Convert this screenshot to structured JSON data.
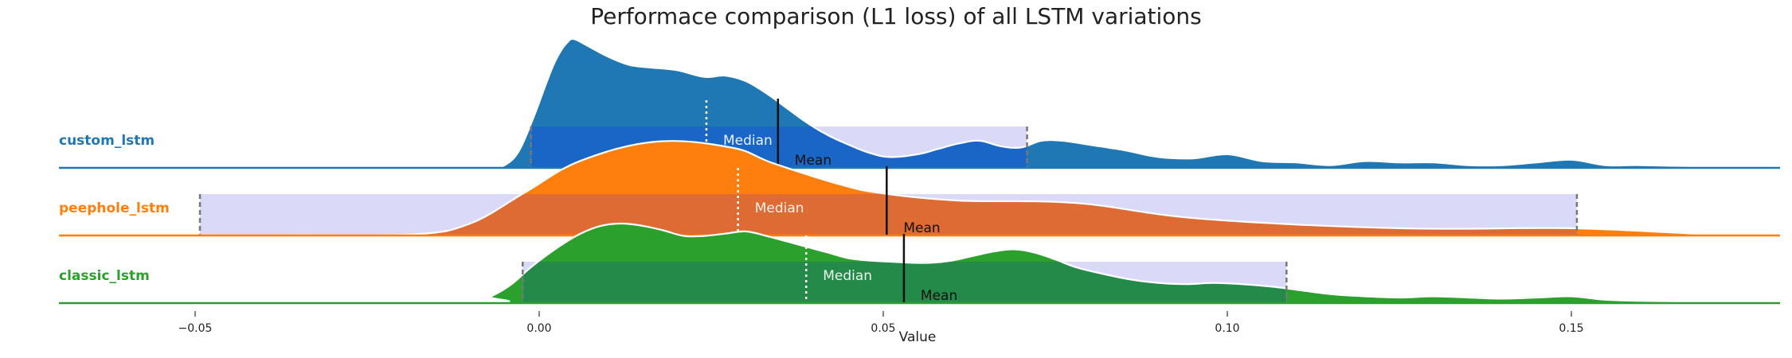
{
  "chart_data": {
    "type": "ridgeline",
    "title": "Performace comparison (L1 loss) of all LSTM variations",
    "xlabel": "Value",
    "xlim": [
      -0.07,
      0.18
    ],
    "xticks": [
      -0.05,
      0.0,
      0.05,
      0.1,
      0.15
    ],
    "xtick_labels": [
      "−0.05",
      "0.00",
      "0.05",
      "0.10",
      "0.15"
    ],
    "grid": false,
    "legend": "none",
    "median_label": "Median",
    "mean_label": "Mean",
    "series": [
      {
        "name": "custom_lstm",
        "color": "#1f77b4",
        "interval_fill": "#1a66c7",
        "mean": 0.0347,
        "median": 0.0243,
        "interval": [
          -0.0012,
          0.0709
        ],
        "density_x": [
          -0.007,
          -0.005,
          -0.003,
          -0.001,
          0.001,
          0.002,
          0.003,
          0.004,
          0.005,
          0.007,
          0.01,
          0.013,
          0.016,
          0.02,
          0.024,
          0.027,
          0.03,
          0.033,
          0.036,
          0.039,
          0.042,
          0.045,
          0.048,
          0.051,
          0.055,
          0.058,
          0.061,
          0.064,
          0.067,
          0.07,
          0.073,
          0.076,
          0.08,
          0.085,
          0.09,
          0.095,
          0.1,
          0.105,
          0.11,
          0.115,
          0.12,
          0.125,
          0.13,
          0.135,
          0.14,
          0.145,
          0.15,
          0.155,
          0.16,
          0.17,
          0.18
        ],
        "density": [
          0.0,
          0.02,
          0.12,
          0.35,
          0.62,
          0.75,
          0.85,
          0.92,
          0.95,
          0.9,
          0.82,
          0.76,
          0.74,
          0.72,
          0.67,
          0.68,
          0.64,
          0.55,
          0.44,
          0.33,
          0.24,
          0.17,
          0.11,
          0.08,
          0.1,
          0.14,
          0.18,
          0.2,
          0.16,
          0.15,
          0.2,
          0.2,
          0.17,
          0.13,
          0.08,
          0.07,
          0.1,
          0.05,
          0.04,
          0.02,
          0.05,
          0.04,
          0.04,
          0.02,
          0.02,
          0.04,
          0.06,
          0.02,
          0.02,
          0.01,
          0.0
        ]
      },
      {
        "name": "peephole_lstm",
        "color": "#ff7f0e",
        "interval_fill": "#dd6b33",
        "mean": 0.0505,
        "median": 0.0289,
        "interval": [
          -0.0493,
          0.1508
        ],
        "density_x": [
          -0.07,
          -0.05,
          -0.035,
          -0.018,
          -0.01,
          -0.002,
          0.006,
          0.017,
          0.028,
          0.034,
          0.044,
          0.05,
          0.061,
          0.078,
          0.096,
          0.125,
          0.15,
          0.17,
          0.18
        ],
        "density": [
          0.0,
          0.0,
          0.0,
          0.01,
          0.1,
          0.36,
          0.62,
          0.78,
          0.73,
          0.6,
          0.42,
          0.35,
          0.29,
          0.27,
          0.14,
          0.06,
          0.06,
          0.01,
          0.0
        ]
      },
      {
        "name": "classic_lstm",
        "color": "#2ca02c",
        "interval_fill": "#248a4a",
        "mean": 0.053,
        "median": 0.0388,
        "interval": [
          -0.0024,
          0.1086
        ],
        "density_x": [
          -0.07,
          -0.01,
          -0.007,
          -0.004,
          -0.001,
          0.003,
          0.006,
          0.009,
          0.012,
          0.015,
          0.018,
          0.021,
          0.024,
          0.027,
          0.03,
          0.033,
          0.036,
          0.039,
          0.042,
          0.045,
          0.048,
          0.051,
          0.054,
          0.057,
          0.06,
          0.063,
          0.066,
          0.069,
          0.072,
          0.075,
          0.078,
          0.082,
          0.086,
          0.09,
          0.094,
          0.098,
          0.102,
          0.106,
          0.11,
          0.115,
          0.12,
          0.125,
          0.13,
          0.135,
          0.14,
          0.145,
          0.15,
          0.155,
          0.16,
          0.17,
          0.18
        ],
        "density": [
          0.0,
          0.0,
          0.06,
          0.17,
          0.33,
          0.51,
          0.62,
          0.69,
          0.71,
          0.69,
          0.65,
          0.6,
          0.6,
          0.62,
          0.64,
          0.6,
          0.55,
          0.5,
          0.45,
          0.4,
          0.38,
          0.37,
          0.36,
          0.36,
          0.38,
          0.42,
          0.46,
          0.48,
          0.45,
          0.39,
          0.32,
          0.26,
          0.21,
          0.18,
          0.17,
          0.18,
          0.17,
          0.15,
          0.12,
          0.08,
          0.06,
          0.05,
          0.06,
          0.05,
          0.04,
          0.05,
          0.06,
          0.03,
          0.02,
          0.01,
          0.0
        ]
      }
    ]
  }
}
